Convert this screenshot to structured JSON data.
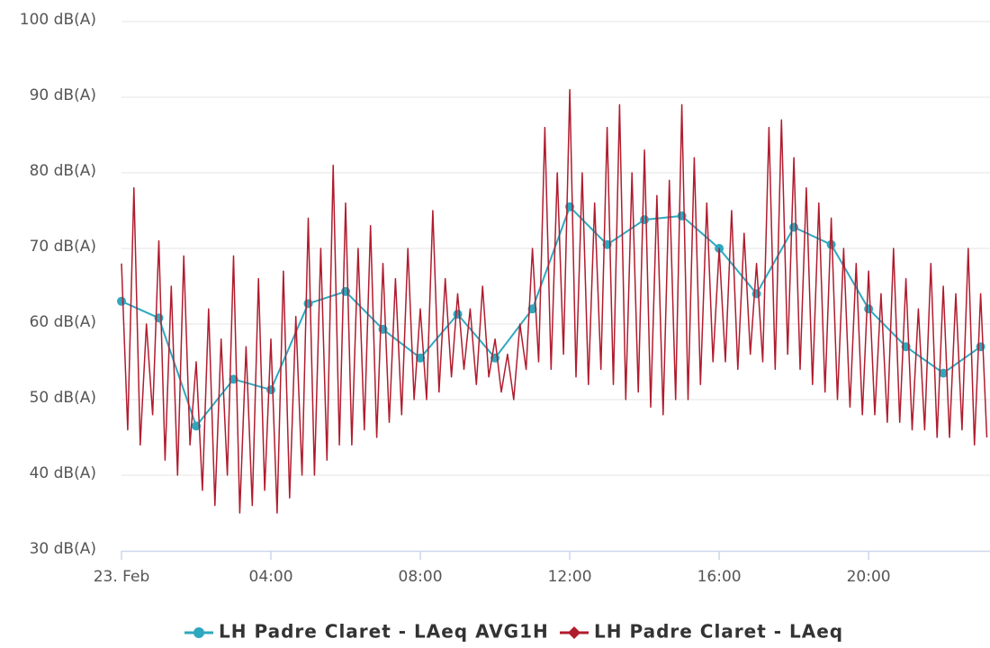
{
  "chart_data": {
    "type": "line",
    "xlim": [
      0,
      1395
    ],
    "xticks": [
      {
        "value": 0,
        "label": "23. Feb"
      },
      {
        "value": 240,
        "label": "04:00"
      },
      {
        "value": 480,
        "label": "08:00"
      },
      {
        "value": 720,
        "label": "12:00"
      },
      {
        "value": 960,
        "label": "16:00"
      },
      {
        "value": 1200,
        "label": "20:00"
      }
    ],
    "ylim": [
      30,
      100
    ],
    "yticks": [
      {
        "value": 30,
        "label": "30 dB(A)"
      },
      {
        "value": 40,
        "label": "40 dB(A)"
      },
      {
        "value": 50,
        "label": "50 dB(A)"
      },
      {
        "value": 60,
        "label": "60 dB(A)"
      },
      {
        "value": 70,
        "label": "70 dB(A)"
      },
      {
        "value": 80,
        "label": "80 dB(A)"
      },
      {
        "value": 90,
        "label": "90 dB(A)"
      },
      {
        "value": 100,
        "label": "100 dB(A)"
      }
    ],
    "grid": true,
    "legend": "bottom",
    "series": [
      {
        "name": "LH Padre Claret - LAeq AVG1H",
        "color": "#2ea8bf",
        "marker": "circle",
        "x": [
          0,
          60,
          120,
          180,
          240,
          300,
          360,
          420,
          480,
          540,
          600,
          660,
          720,
          780,
          840,
          900,
          960,
          1020,
          1080,
          1140,
          1200,
          1260,
          1320,
          1380
        ],
        "values": [
          63,
          60.8,
          46.5,
          52.7,
          51.3,
          62.7,
          64.3,
          59.3,
          55.5,
          61.3,
          55.5,
          62,
          75.5,
          70.5,
          73.8,
          74.3,
          70,
          64,
          72.8,
          70.5,
          62,
          57,
          53.5,
          57
        ]
      },
      {
        "name": "LH Padre Claret - LAeq",
        "color": "#b01c2e",
        "marker": "diamond",
        "x": [
          0,
          10,
          20,
          30,
          40,
          50,
          60,
          70,
          80,
          90,
          100,
          110,
          120,
          130,
          140,
          150,
          160,
          170,
          180,
          190,
          200,
          210,
          220,
          230,
          240,
          250,
          260,
          270,
          280,
          290,
          300,
          310,
          320,
          330,
          340,
          350,
          360,
          370,
          380,
          390,
          400,
          410,
          420,
          430,
          440,
          450,
          460,
          470,
          480,
          490,
          500,
          510,
          520,
          530,
          540,
          550,
          560,
          570,
          580,
          590,
          600,
          610,
          620,
          630,
          640,
          650,
          660,
          670,
          680,
          690,
          700,
          710,
          720,
          730,
          740,
          750,
          760,
          770,
          780,
          790,
          800,
          810,
          820,
          830,
          840,
          850,
          860,
          870,
          880,
          890,
          900,
          910,
          920,
          930,
          940,
          950,
          960,
          970,
          980,
          990,
          1000,
          1010,
          1020,
          1030,
          1040,
          1050,
          1060,
          1070,
          1080,
          1090,
          1100,
          1110,
          1120,
          1130,
          1140,
          1150,
          1160,
          1170,
          1180,
          1190,
          1200,
          1210,
          1220,
          1230,
          1240,
          1250,
          1260,
          1270,
          1280,
          1290,
          1300,
          1310,
          1320,
          1330,
          1340,
          1350,
          1360,
          1370,
          1380,
          1390
        ],
        "values": [
          68,
          46,
          78,
          44,
          60,
          48,
          71,
          42,
          65,
          40,
          69,
          44,
          55,
          38,
          62,
          36,
          58,
          40,
          69,
          35,
          57,
          36,
          66,
          38,
          58,
          35,
          67,
          37,
          61,
          40,
          74,
          40,
          70,
          42,
          81,
          44,
          76,
          44,
          70,
          46,
          73,
          45,
          68,
          47,
          66,
          48,
          70,
          50,
          62,
          50,
          75,
          51,
          66,
          53,
          64,
          54,
          62,
          52,
          65,
          53,
          58,
          51,
          56,
          50,
          60,
          54,
          70,
          55,
          86,
          54,
          80,
          56,
          91,
          53,
          80,
          52,
          76,
          54,
          86,
          52,
          89,
          50,
          80,
          51,
          83,
          49,
          77,
          48,
          79,
          50,
          89,
          50,
          82,
          52,
          76,
          55,
          70,
          55,
          75,
          54,
          72,
          56,
          68,
          55,
          86,
          54,
          87,
          56,
          82,
          54,
          78,
          52,
          76,
          51,
          74,
          50,
          70,
          49,
          68,
          48,
          67,
          48,
          64,
          47,
          70,
          47,
          66,
          46,
          62,
          46,
          68,
          45,
          65,
          45,
          64,
          46,
          70,
          44,
          64,
          45
        ]
      }
    ]
  }
}
